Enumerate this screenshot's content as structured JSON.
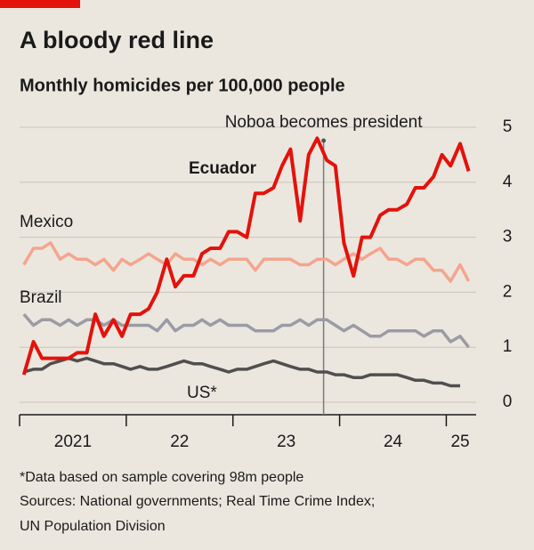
{
  "chart_data": {
    "type": "line",
    "title": "A bloody red line",
    "subtitle": "Monthly homicides per 100,000 people",
    "annotation": {
      "text": "Noboa becomes president",
      "x": 2023.85
    },
    "x": [
      2021.04,
      2021.13,
      2021.21,
      2021.29,
      2021.38,
      2021.46,
      2021.54,
      2021.63,
      2021.71,
      2021.79,
      2021.88,
      2021.96,
      2022.04,
      2022.13,
      2022.21,
      2022.29,
      2022.38,
      2022.46,
      2022.54,
      2022.63,
      2022.71,
      2022.79,
      2022.88,
      2022.96,
      2023.04,
      2023.13,
      2023.21,
      2023.29,
      2023.38,
      2023.46,
      2023.54,
      2023.63,
      2023.71,
      2023.79,
      2023.88,
      2023.96,
      2024.04,
      2024.13,
      2024.21,
      2024.29,
      2024.38,
      2024.46,
      2024.54,
      2024.63,
      2024.71,
      2024.79,
      2024.88,
      2024.96,
      2025.04,
      2025.13,
      2025.21
    ],
    "series": [
      {
        "name": "Mexico",
        "color": "#f4a58e",
        "values": [
          2.5,
          2.8,
          2.8,
          2.9,
          2.6,
          2.7,
          2.6,
          2.6,
          2.5,
          2.6,
          2.4,
          2.6,
          2.5,
          2.6,
          2.7,
          2.6,
          2.5,
          2.7,
          2.6,
          2.6,
          2.5,
          2.6,
          2.5,
          2.6,
          2.6,
          2.6,
          2.4,
          2.6,
          2.6,
          2.6,
          2.6,
          2.5,
          2.5,
          2.6,
          2.6,
          2.5,
          2.6,
          2.7,
          2.6,
          2.7,
          2.8,
          2.6,
          2.6,
          2.5,
          2.6,
          2.6,
          2.4,
          2.4,
          2.2,
          2.5,
          2.2
        ]
      },
      {
        "name": "Brazil",
        "color": "#9b9ba4",
        "values": [
          1.6,
          1.4,
          1.5,
          1.5,
          1.4,
          1.5,
          1.4,
          1.5,
          1.5,
          1.4,
          1.5,
          1.4,
          1.4,
          1.4,
          1.4,
          1.3,
          1.5,
          1.3,
          1.4,
          1.4,
          1.5,
          1.4,
          1.5,
          1.4,
          1.4,
          1.4,
          1.3,
          1.3,
          1.3,
          1.4,
          1.4,
          1.5,
          1.4,
          1.5,
          1.5,
          1.4,
          1.3,
          1.4,
          1.3,
          1.2,
          1.2,
          1.3,
          1.3,
          1.3,
          1.3,
          1.2,
          1.3,
          1.3,
          1.1,
          1.2,
          1.0
        ]
      },
      {
        "name": "US*",
        "color": "#4f4f4f",
        "values": [
          0.55,
          0.6,
          0.6,
          0.7,
          0.75,
          0.8,
          0.75,
          0.8,
          0.75,
          0.7,
          0.7,
          0.65,
          0.6,
          0.65,
          0.6,
          0.6,
          0.65,
          0.7,
          0.75,
          0.7,
          0.7,
          0.65,
          0.6,
          0.55,
          0.6,
          0.6,
          0.65,
          0.7,
          0.75,
          0.7,
          0.65,
          0.6,
          0.6,
          0.55,
          0.55,
          0.5,
          0.5,
          0.45,
          0.45,
          0.5,
          0.5,
          0.5,
          0.5,
          0.45,
          0.4,
          0.4,
          0.35,
          0.35,
          0.3,
          0.3,
          null
        ]
      },
      {
        "name": "Ecuador",
        "color": "#e3120b",
        "values": [
          0.5,
          1.1,
          0.8,
          0.8,
          0.8,
          0.8,
          0.9,
          0.9,
          1.6,
          1.2,
          1.5,
          1.2,
          1.6,
          1.6,
          1.7,
          2.0,
          2.6,
          2.1,
          2.3,
          2.3,
          2.7,
          2.8,
          2.8,
          3.1,
          3.1,
          3.0,
          3.8,
          3.8,
          3.9,
          4.3,
          4.6,
          3.3,
          4.5,
          4.8,
          4.4,
          4.3,
          2.9,
          2.3,
          3.0,
          3.0,
          3.4,
          3.5,
          3.5,
          3.6,
          3.9,
          3.9,
          4.1,
          4.5,
          4.3,
          4.7,
          4.2
        ]
      }
    ],
    "xlim": [
      2021,
      2025.28
    ],
    "xtick_marks": [
      2021,
      2022,
      2023,
      2024,
      2025
    ],
    "xticks": [
      {
        "value": 2021.5,
        "label": "2021"
      },
      {
        "value": 2022.5,
        "label": "22"
      },
      {
        "value": 2023.5,
        "label": "23"
      },
      {
        "value": 2024.5,
        "label": "24"
      },
      {
        "value": 2025.13,
        "label": "25"
      }
    ],
    "ylim": [
      0,
      5
    ],
    "yticks": [
      0,
      1,
      2,
      3,
      4,
      5
    ],
    "grid": true,
    "notes": [
      "*Data based on sample covering 98m people",
      "Sources: National governments; Real Time Crime Index;",
      "UN Population Division"
    ]
  }
}
